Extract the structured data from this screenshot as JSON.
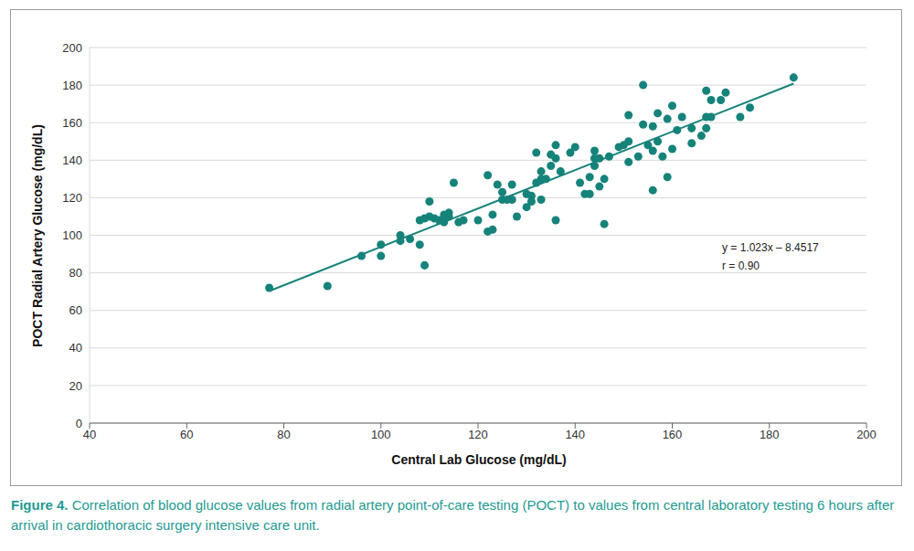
{
  "chart_data": {
    "type": "scatter",
    "x_label": "Central Lab Glucose (mg/dL)",
    "y_label": "POCT Radial Artery Glucose (mg/dL)",
    "caption_label": "Figure 4.",
    "caption": "Correlation of blood glucose values from radial artery point-of-care testing (POCT) to values from central laboratory testing 6 hours after arrival in cardiothoracic surgery intensive care unit.",
    "annotations": [
      "y = 1.023x – 8.4517",
      "r = 0.90"
    ],
    "x": [
      77,
      89,
      96,
      100,
      100,
      104,
      104,
      106,
      108,
      108,
      109,
      109,
      110,
      110,
      111,
      112,
      113,
      113,
      114,
      115,
      114,
      116,
      117,
      120,
      122,
      122,
      123,
      123,
      124,
      125,
      125,
      126,
      127,
      127,
      128,
      130,
      130,
      131,
      131,
      132,
      132,
      133,
      133,
      133,
      134,
      135,
      135,
      136,
      136,
      136,
      137,
      139,
      140,
      141,
      142,
      143,
      143,
      144,
      144,
      144,
      145,
      145,
      146,
      146,
      147,
      149,
      150,
      151,
      151,
      151,
      153,
      154,
      154,
      155,
      156,
      156,
      157,
      157,
      156,
      158,
      159,
      159,
      160,
      160,
      161,
      162,
      164,
      164,
      166,
      167,
      167,
      167,
      168,
      168,
      170,
      171,
      174,
      176,
      185
    ],
    "values": [
      72,
      73,
      89,
      95,
      89,
      100,
      97,
      98,
      95,
      108,
      109,
      84,
      110,
      118,
      109,
      108,
      111,
      107,
      112,
      128,
      110,
      107,
      108,
      108,
      132,
      102,
      111,
      103,
      127,
      123,
      119,
      119,
      127,
      119,
      110,
      115,
      122,
      118,
      121,
      144,
      128,
      130,
      134,
      119,
      130,
      137,
      143,
      148,
      141,
      108,
      134,
      144,
      147,
      128,
      122,
      131,
      122,
      145,
      141,
      137,
      141,
      126,
      130,
      106,
      142,
      147,
      148,
      150,
      164,
      139,
      142,
      180,
      159,
      148,
      158,
      124,
      165,
      150,
      145,
      142,
      162,
      131,
      169,
      146,
      156,
      163,
      149,
      157,
      153,
      177,
      157,
      163,
      163,
      172,
      172,
      176,
      163,
      168,
      184
    ],
    "trend": {
      "x": [
        77,
        185
      ],
      "y": [
        70.3,
        180.8
      ]
    },
    "color": "#16837a",
    "marker": "circle",
    "xlim": [
      40,
      200
    ],
    "xticks": [
      40,
      60,
      80,
      100,
      120,
      140,
      160,
      180,
      200
    ],
    "ylim": [
      0,
      200
    ],
    "yticks": [
      0,
      20,
      40,
      60,
      80,
      100,
      120,
      140,
      160,
      180,
      200
    ],
    "grid": true
  }
}
